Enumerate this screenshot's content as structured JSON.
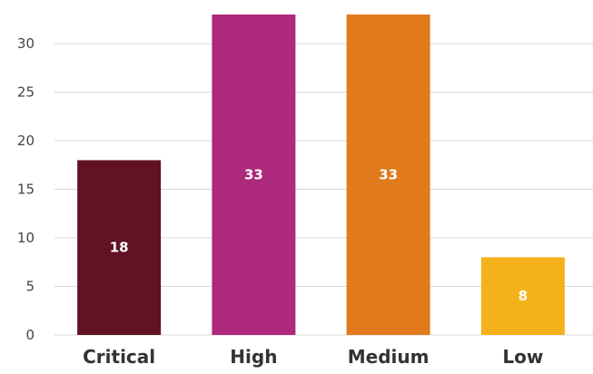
{
  "chart_data": {
    "type": "bar",
    "categories": [
      "Critical",
      "High",
      "Medium",
      "Low"
    ],
    "values": [
      18,
      33,
      33,
      8
    ],
    "data_labels": [
      "18",
      "33",
      "33",
      "8"
    ],
    "colors": [
      "#611324",
      "#AE2A7C",
      "#E07A1C",
      "#F5B11A"
    ],
    "ylim": [
      0,
      33
    ],
    "yticks": [
      0,
      5,
      10,
      15,
      20,
      25,
      30
    ],
    "title": "",
    "xlabel": "",
    "ylabel": "",
    "grid": true,
    "grid_color": "#d9d9d9",
    "legend": "none"
  }
}
